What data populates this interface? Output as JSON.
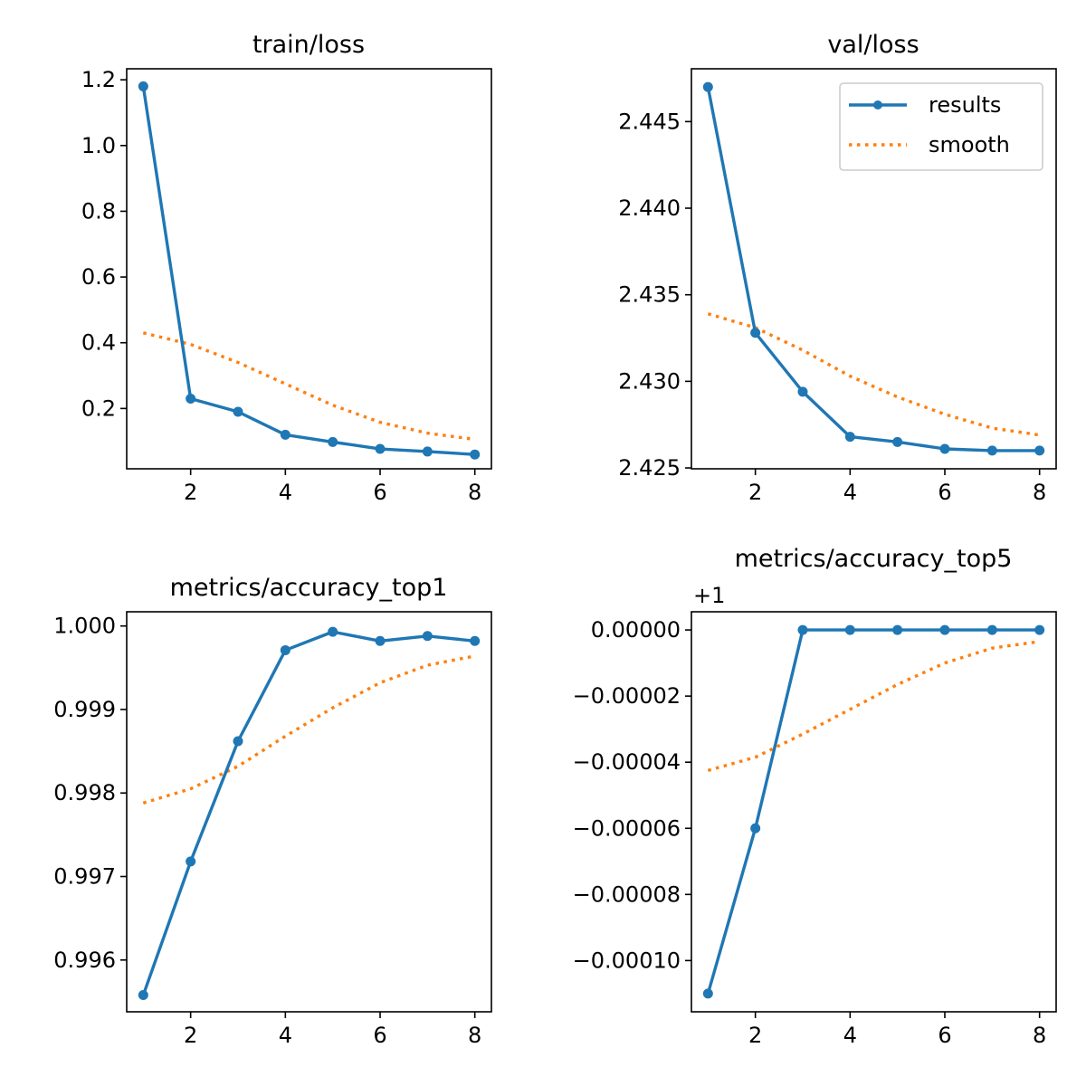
{
  "colors": {
    "results": "#1f77b4",
    "smooth": "#ff7f0e"
  },
  "legend": {
    "placement": "upper right",
    "entries": [
      "results",
      "smooth"
    ]
  },
  "chart_data": [
    {
      "type": "line",
      "title": "train/loss",
      "x": [
        1,
        2,
        3,
        4,
        5,
        6,
        7,
        8
      ],
      "xlim": [
        0.65,
        8.35
      ],
      "ylim": [
        0.0165,
        1.2335
      ],
      "xticks": [
        2,
        4,
        6,
        8
      ],
      "xtick_labels": [
        "2",
        "4",
        "6",
        "8"
      ],
      "yticks": [
        0.2,
        0.4,
        0.6,
        0.8,
        1.0,
        1.2
      ],
      "ytick_labels": [
        "0.2",
        "0.4",
        "0.6",
        "0.8",
        "1.0",
        "1.2"
      ],
      "offset_label": "",
      "series": [
        {
          "name": "results",
          "values": [
            1.18,
            0.23,
            0.19,
            0.12,
            0.098,
            0.077,
            0.069,
            0.06
          ]
        },
        {
          "name": "smooth",
          "values": [
            0.43,
            0.395,
            0.34,
            0.275,
            0.21,
            0.158,
            0.125,
            0.106
          ]
        }
      ]
    },
    {
      "type": "line",
      "title": "val/loss",
      "x": [
        1,
        2,
        3,
        4,
        5,
        6,
        7,
        8
      ],
      "xlim": [
        0.65,
        8.35
      ],
      "ylim": [
        2.42495,
        2.44805
      ],
      "xticks": [
        2,
        4,
        6,
        8
      ],
      "xtick_labels": [
        "2",
        "4",
        "6",
        "8"
      ],
      "yticks": [
        2.425,
        2.43,
        2.435,
        2.44,
        2.445
      ],
      "ytick_labels": [
        "2.425",
        "2.430",
        "2.435",
        "2.440",
        "2.445"
      ],
      "offset_label": "",
      "series": [
        {
          "name": "results",
          "values": [
            2.447,
            2.4328,
            2.4294,
            2.4268,
            2.4265,
            2.4261,
            2.426,
            2.426
          ]
        },
        {
          "name": "smooth",
          "values": [
            2.4339,
            2.4331,
            2.4318,
            2.4303,
            2.4291,
            2.4281,
            2.4273,
            2.4269
          ]
        }
      ]
    },
    {
      "type": "line",
      "title": "metrics/accuracy_top1",
      "x": [
        1,
        2,
        3,
        4,
        5,
        6,
        7,
        8
      ],
      "xlim": [
        0.65,
        8.35
      ],
      "ylim": [
        0.99538,
        1.00017
      ],
      "xticks": [
        2,
        4,
        6,
        8
      ],
      "xtick_labels": [
        "2",
        "4",
        "6",
        "8"
      ],
      "yticks": [
        0.996,
        0.997,
        0.998,
        0.999,
        1.0
      ],
      "ytick_labels": [
        "0.996",
        "0.997",
        "0.998",
        "0.999",
        "1.000"
      ],
      "offset_label": "",
      "series": [
        {
          "name": "results",
          "values": [
            0.99558,
            0.99718,
            0.99862,
            0.99971,
            0.99993,
            0.99982,
            0.99988,
            0.99982
          ]
        },
        {
          "name": "smooth",
          "values": [
            0.99788,
            0.99805,
            0.99832,
            0.99868,
            0.99902,
            0.99932,
            0.99953,
            0.99964
          ]
        }
      ]
    },
    {
      "type": "line",
      "title": "metrics/accuracy_top5",
      "x": [
        1,
        2,
        3,
        4,
        5,
        6,
        7,
        8
      ],
      "xlim": [
        0.65,
        8.35
      ],
      "ylim": [
        -0.0001155,
        5.5e-06
      ],
      "xticks": [
        2,
        4,
        6,
        8
      ],
      "xtick_labels": [
        "2",
        "4",
        "6",
        "8"
      ],
      "yticks": [
        -0.0001,
        -8e-05,
        -6e-05,
        -4e-05,
        -2e-05,
        0
      ],
      "ytick_labels": [
        "−0.00010",
        "−0.00008",
        "−0.00006",
        "−0.00004",
        "−0.00002",
        "0.00000"
      ],
      "offset_label": "+1",
      "series": [
        {
          "name": "results",
          "values": [
            -0.00011,
            -6e-05,
            0,
            0,
            0,
            0,
            0,
            0
          ]
        },
        {
          "name": "smooth",
          "values": [
            -4.25e-05,
            -3.85e-05,
            -3.15e-05,
            -2.4e-05,
            -1.65e-05,
            -1e-05,
            -5.5e-06,
            -3.5e-06
          ]
        }
      ]
    }
  ]
}
